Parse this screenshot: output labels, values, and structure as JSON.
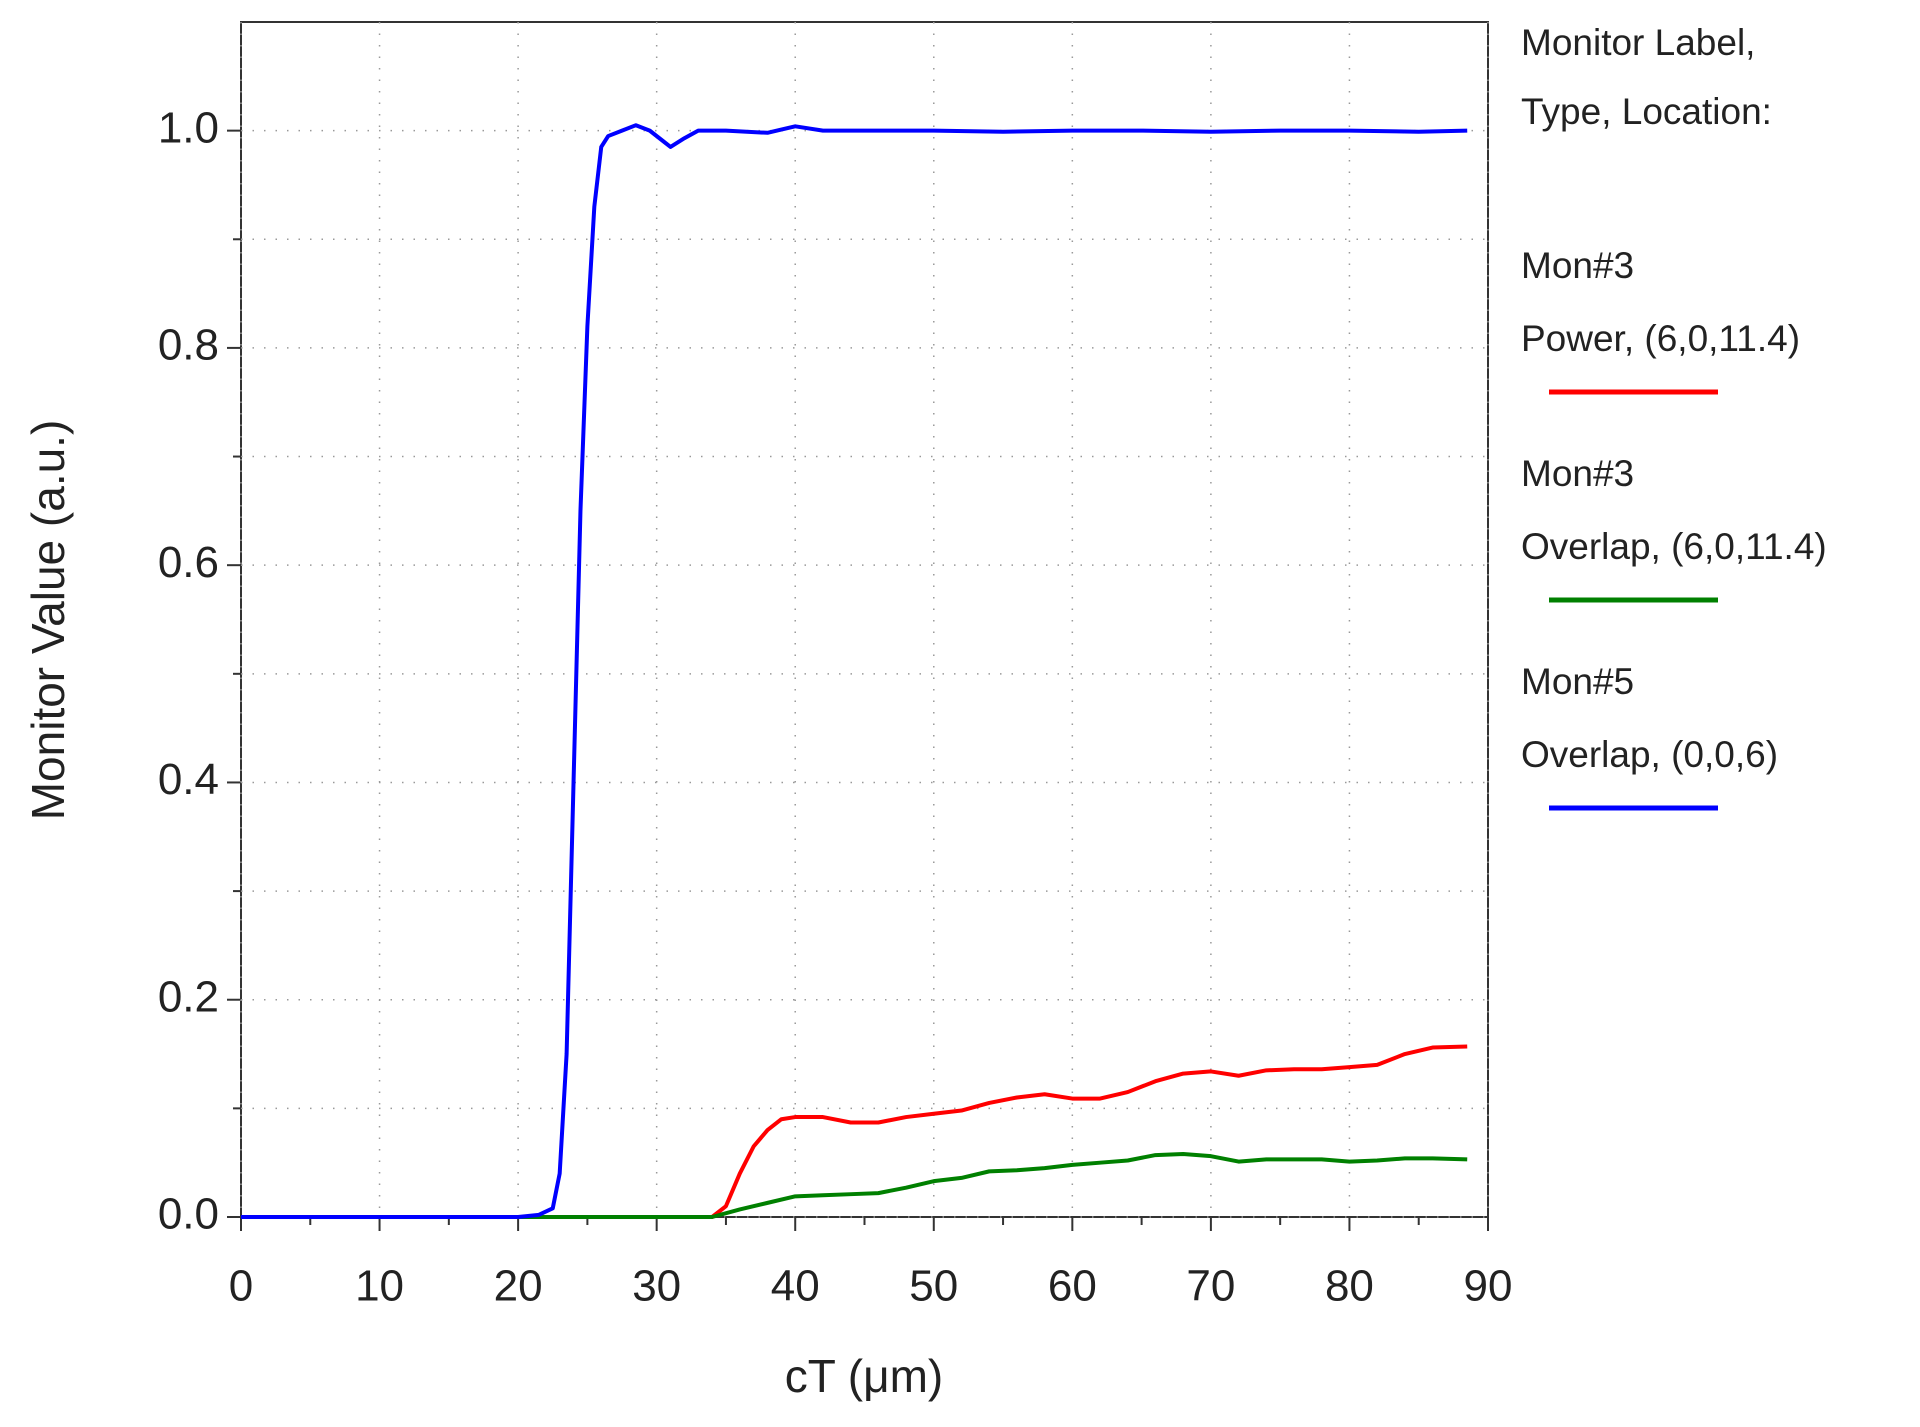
{
  "chart_data": {
    "type": "line",
    "x_label": "cT (μm)",
    "y_label": "Monitor Value (a.u.)",
    "legend_title": [
      "Monitor Label,",
      "Type, Location:"
    ],
    "xlim": [
      0,
      90
    ],
    "xticks": [
      0,
      10,
      20,
      30,
      40,
      50,
      60,
      70,
      80,
      90
    ],
    "xminorticks": [
      5,
      15,
      25,
      35,
      45,
      55,
      65,
      75,
      85
    ],
    "ylim": [
      0,
      1.1
    ],
    "yticks": [
      {
        "value": 0,
        "label": "0.0"
      },
      0.2,
      0.4,
      0.6,
      0.8,
      {
        "value": 1,
        "label": "1.0"
      }
    ],
    "yminorticks": [
      0.1,
      0.3,
      0.5,
      0.7,
      0.9
    ],
    "grid": true,
    "series": [
      {
        "name": "Mon#3",
        "detail": "Power, (6,0,11.4)",
        "color": "#ff0000",
        "x": [
          0,
          10,
          20,
          30,
          34,
          35,
          36,
          37,
          38,
          39,
          40,
          42,
          44,
          46,
          48,
          50,
          52,
          54,
          56,
          58,
          60,
          62,
          64,
          66,
          68,
          70,
          72,
          74,
          76,
          78,
          80,
          82,
          84,
          86,
          88.5
        ],
        "values": [
          0,
          0,
          0,
          0,
          0,
          0.01,
          0.04,
          0.065,
          0.08,
          0.09,
          0.092,
          0.092,
          0.087,
          0.087,
          0.092,
          0.095,
          0.098,
          0.105,
          0.11,
          0.113,
          0.109,
          0.109,
          0.115,
          0.125,
          0.132,
          0.134,
          0.13,
          0.135,
          0.136,
          0.136,
          0.138,
          0.14,
          0.15,
          0.156,
          0.157
        ]
      },
      {
        "name": "Mon#3",
        "detail": "Overlap, (6,0,11.4)",
        "color": "#008000",
        "x": [
          0,
          10,
          20,
          30,
          34,
          36,
          38,
          40,
          42,
          44,
          46,
          48,
          50,
          52,
          54,
          56,
          58,
          60,
          62,
          64,
          66,
          68,
          70,
          72,
          74,
          76,
          78,
          80,
          82,
          84,
          86,
          88.5
        ],
        "values": [
          0,
          0,
          0,
          0,
          0,
          0.007,
          0.013,
          0.019,
          0.02,
          0.021,
          0.022,
          0.027,
          0.033,
          0.036,
          0.042,
          0.043,
          0.045,
          0.048,
          0.05,
          0.052,
          0.057,
          0.058,
          0.056,
          0.051,
          0.053,
          0.053,
          0.053,
          0.051,
          0.052,
          0.054,
          0.054,
          0.053
        ]
      },
      {
        "name": "Mon#5",
        "detail": "Overlap, (0,0,6)",
        "color": "#0000ff",
        "x": [
          0,
          5,
          10,
          15,
          20,
          21.5,
          22.5,
          23,
          23.5,
          24,
          24.5,
          25,
          25.5,
          26,
          26.5,
          27.5,
          28.5,
          29.5,
          30.5,
          31,
          32,
          33,
          35,
          38,
          40,
          42,
          45,
          50,
          55,
          60,
          65,
          70,
          75,
          80,
          85,
          88.5
        ],
        "values": [
          0,
          0,
          0,
          0,
          0,
          0.002,
          0.008,
          0.04,
          0.15,
          0.4,
          0.65,
          0.82,
          0.93,
          0.985,
          0.995,
          1.0,
          1.005,
          1.0,
          0.99,
          0.985,
          0.993,
          1.0,
          1.0,
          0.998,
          1.004,
          1.0,
          1.0,
          1.0,
          0.999,
          1.0,
          1.0,
          0.999,
          1.0,
          1.0,
          0.999,
          1.0
        ]
      }
    ]
  }
}
